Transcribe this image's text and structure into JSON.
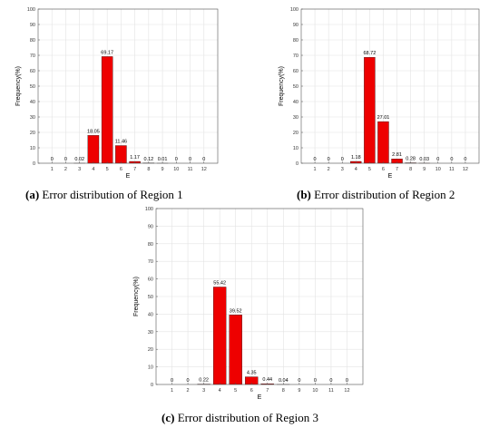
{
  "chart_data": [
    {
      "type": "bar",
      "caption_letter": "(a)",
      "caption_text": " Error distribution of Region 1",
      "categories": [
        "1",
        "2",
        "3",
        "4",
        "5",
        "6",
        "7",
        "8",
        "9",
        "10",
        "11",
        "12"
      ],
      "values": [
        0,
        0,
        0.02,
        18.05,
        69.17,
        11.46,
        1.17,
        0.12,
        0.01,
        0,
        0,
        0
      ],
      "value_labels": [
        "0",
        "0",
        "0.02",
        "18.05",
        "69.17",
        "11.46",
        "1.17",
        "0.12",
        "0.01",
        "0",
        "0",
        "0"
      ],
      "xlabel": "E",
      "ylabel": "Frequency(%)",
      "ylim": [
        0,
        100
      ],
      "yticks": [
        0,
        10,
        20,
        30,
        40,
        50,
        60,
        70,
        80,
        90,
        100
      ],
      "grid": true,
      "bar_color": "#ee0000"
    },
    {
      "type": "bar",
      "caption_letter": "(b)",
      "caption_text": " Error distribution of Region 2",
      "categories": [
        "1",
        "2",
        "3",
        "4",
        "5",
        "6",
        "7",
        "8",
        "9",
        "10",
        "11",
        "12"
      ],
      "values": [
        0,
        0,
        0,
        1.18,
        68.72,
        27.01,
        2.81,
        0.28,
        0.03,
        0,
        0,
        0
      ],
      "value_labels": [
        "0",
        "0",
        "0",
        "1.18",
        "68.72",
        "27.01",
        "2.81",
        "0.28",
        "0.03",
        "0",
        "0",
        "0"
      ],
      "xlabel": "E",
      "ylabel": "Frequency(%)",
      "ylim": [
        0,
        100
      ],
      "yticks": [
        0,
        10,
        20,
        30,
        40,
        50,
        60,
        70,
        80,
        90,
        100
      ],
      "grid": true,
      "bar_color": "#ee0000"
    },
    {
      "type": "bar",
      "caption_letter": "(c)",
      "caption_text": " Error distribution of Region 3",
      "categories": [
        "1",
        "2",
        "3",
        "4",
        "5",
        "6",
        "7",
        "8",
        "9",
        "10",
        "11",
        "12"
      ],
      "values": [
        0,
        0,
        0.22,
        55.42,
        39.52,
        4.35,
        0.44,
        0.04,
        0,
        0,
        0,
        0
      ],
      "value_labels": [
        "0",
        "0",
        "0.22",
        "55.42",
        "39.52",
        "4.35",
        "0.44",
        "0.04",
        "0",
        "0",
        "0",
        "0"
      ],
      "xlabel": "E",
      "ylabel": "Frequency(%)",
      "ylim": [
        0,
        100
      ],
      "yticks": [
        0,
        10,
        20,
        30,
        40,
        50,
        60,
        70,
        80,
        90,
        100
      ],
      "grid": true,
      "bar_color": "#ee0000"
    }
  ]
}
